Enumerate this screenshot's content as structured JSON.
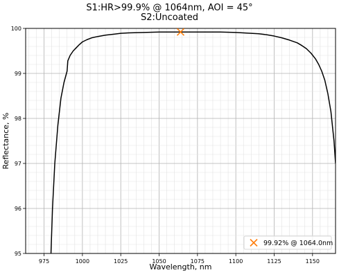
{
  "chart_data": {
    "type": "line",
    "title_lines": [
      "S1:HR>99.9% @ 1064nm, AOI = 45°",
      "S2:Uncoated"
    ],
    "xlabel": "Wavelength, nm",
    "ylabel": "Reflectance, %",
    "xlim": [
      963,
      1165
    ],
    "ylim": [
      95,
      100
    ],
    "xticks": [
      975,
      1000,
      1025,
      1050,
      1075,
      1100,
      1125,
      1150
    ],
    "xtick_labels": [
      "975",
      "1000",
      "1025",
      "1050",
      "1075",
      "1100",
      "1125",
      "1150"
    ],
    "yticks": [
      95,
      96,
      97,
      98,
      99,
      100
    ],
    "ytick_labels": [
      "95",
      "96",
      "97",
      "98",
      "99",
      "100"
    ],
    "grid": true,
    "legend_position": "lower-right",
    "series": [
      {
        "color": "#000000",
        "x": [
          979.5,
          980.5,
          982,
          984,
          986,
          988,
          990,
          990.5,
          992,
          994,
          996,
          998,
          1000,
          1003,
          1006,
          1010,
          1015,
          1020,
          1025,
          1030,
          1040,
          1050,
          1060,
          1064,
          1070,
          1080,
          1090,
          1100,
          1105,
          1110,
          1115,
          1120,
          1125,
          1130,
          1135,
          1140,
          1143,
          1146,
          1149,
          1152,
          1154,
          1156,
          1158,
          1160,
          1162,
          1164,
          1165
        ],
        "y": [
          95.0,
          96.0,
          97.0,
          97.85,
          98.45,
          98.8,
          99.05,
          99.28,
          99.4,
          99.5,
          99.57,
          99.64,
          99.7,
          99.75,
          99.79,
          99.82,
          99.85,
          99.87,
          99.89,
          99.9,
          99.91,
          99.92,
          99.92,
          99.92,
          99.92,
          99.92,
          99.92,
          99.91,
          99.9,
          99.89,
          99.88,
          99.86,
          99.83,
          99.79,
          99.74,
          99.68,
          99.62,
          99.55,
          99.45,
          99.32,
          99.2,
          99.05,
          98.85,
          98.55,
          98.15,
          97.5,
          97.0
        ]
      }
    ],
    "marker": {
      "x": 1064,
      "y": 99.92,
      "color": "#ff7f0e",
      "symbol": "x",
      "label": "99.92% @ 1064.0nm"
    }
  }
}
